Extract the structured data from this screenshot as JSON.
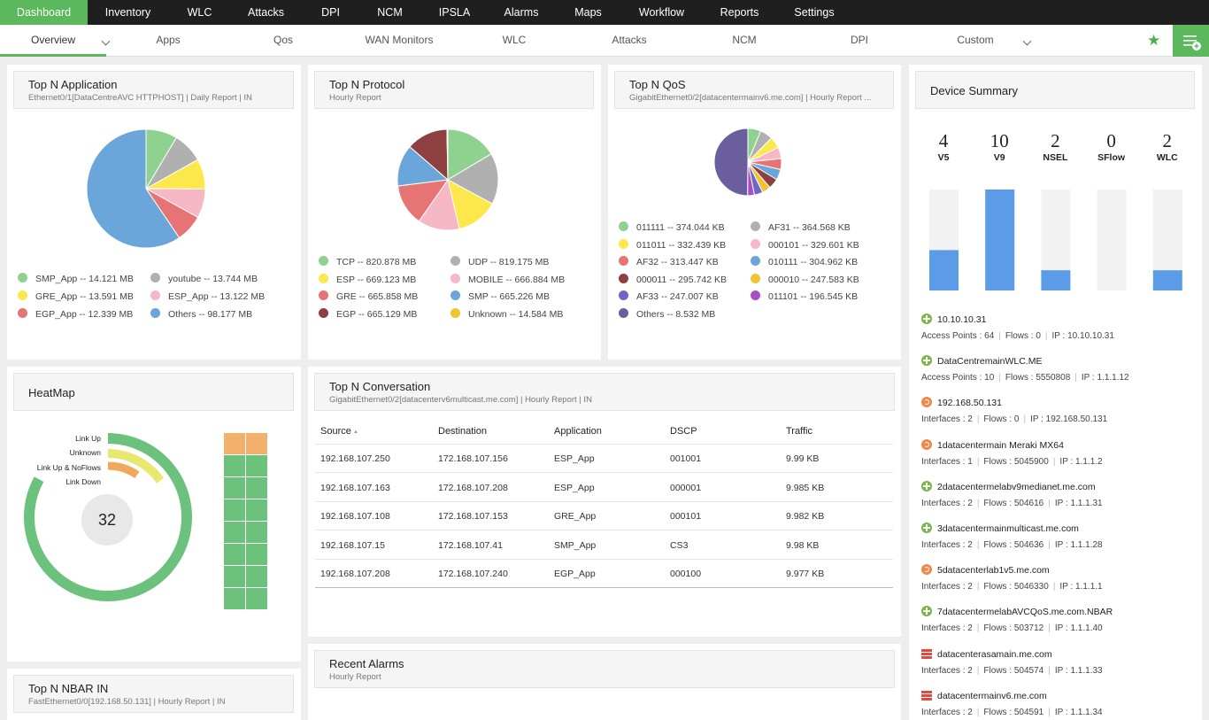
{
  "topnav": {
    "items": [
      "Dashboard",
      "Inventory",
      "WLC",
      "Attacks",
      "DPI",
      "NCM",
      "IPSLA",
      "Alarms",
      "Maps",
      "Workflow",
      "Reports",
      "Settings"
    ]
  },
  "subnav": {
    "tabs": [
      "Overview",
      "Apps",
      "Qos",
      "WAN Monitors",
      "WLC",
      "Attacks",
      "NCM",
      "DPI",
      "Custom"
    ]
  },
  "colors": {
    "accent": "#5cb85c",
    "dark": "#1f1f1f"
  },
  "top_app": {
    "title": "Top N Application",
    "subtitle": "Ethernet0/1[DataCentreAVC HTTPHOST] | Daily Report | IN",
    "chart_data": {
      "type": "pie",
      "slices": [
        {
          "label": "SMP_App -- 14.121 MB",
          "value": 14.121,
          "color": "#8fd18f"
        },
        {
          "label": "youtube -- 13.744 MB",
          "value": 13.744,
          "color": "#b0b0b0"
        },
        {
          "label": "GRE_App -- 13.591 MB",
          "value": 13.591,
          "color": "#fde84c"
        },
        {
          "label": "ESP_App -- 13.122 MB",
          "value": 13.122,
          "color": "#f7b8c6"
        },
        {
          "label": "EGP_App -- 12.339 MB",
          "value": 12.339,
          "color": "#e77474"
        },
        {
          "label": "Others -- 98.177 MB",
          "value": 98.177,
          "color": "#6aa6d9"
        }
      ]
    }
  },
  "top_protocol": {
    "title": "Top N Protocol",
    "subtitle": "Hourly Report",
    "chart_data": {
      "type": "pie",
      "slices": [
        {
          "label": "TCP -- 820.878 MB",
          "value": 820.878,
          "color": "#8fd18f"
        },
        {
          "label": "UDP -- 819.175 MB",
          "value": 819.175,
          "color": "#b0b0b0"
        },
        {
          "label": "ESP -- 669.123 MB",
          "value": 669.123,
          "color": "#fde84c"
        },
        {
          "label": "MOBILE -- 666.884 MB",
          "value": 666.884,
          "color": "#f7b8c6"
        },
        {
          "label": "GRE -- 665.858 MB",
          "value": 665.858,
          "color": "#e77474"
        },
        {
          "label": "SMP -- 665.226 MB",
          "value": 665.226,
          "color": "#6aa6d9"
        },
        {
          "label": "EGP -- 665.129 MB",
          "value": 665.129,
          "color": "#8e3f3f"
        },
        {
          "label": "Unknown -- 14.584 MB",
          "value": 14.584,
          "color": "#f2c232"
        }
      ]
    }
  },
  "top_qos": {
    "title": "Top N QoS",
    "subtitle": "GigabitEthernet0/2[datacentermainv6.me.com] | Hourly Report ...",
    "chart_data": {
      "type": "pie",
      "slices": [
        {
          "label": "011111 -- 374.044 KB",
          "value": 374.044,
          "color": "#8fd18f"
        },
        {
          "label": "AF31 -- 364.568 KB",
          "value": 364.568,
          "color": "#b0b0b0"
        },
        {
          "label": "011011 -- 332.439 KB",
          "value": 332.439,
          "color": "#fde84c"
        },
        {
          "label": "000101 -- 329.601 KB",
          "value": 329.601,
          "color": "#f7b8c6"
        },
        {
          "label": "AF32 -- 313.447 KB",
          "value": 313.447,
          "color": "#e77474"
        },
        {
          "label": "010111 -- 304.962 KB",
          "value": 304.962,
          "color": "#6aa6d9"
        },
        {
          "label": "000011 -- 295.742 KB",
          "value": 295.742,
          "color": "#8e3f3f"
        },
        {
          "label": "000010 -- 247.583 KB",
          "value": 247.583,
          "color": "#f2c232"
        },
        {
          "label": "AF33 -- 247.007 KB",
          "value": 247.007,
          "color": "#6f67c8"
        },
        {
          "label": "011101 -- 196.545 KB",
          "value": 196.545,
          "color": "#a94fc5"
        },
        {
          "label": "Others -- 8.532 MB",
          "value": 8532,
          "color": "#6b5e9e"
        }
      ]
    }
  },
  "device_summary": {
    "title": "Device Summary",
    "counts": [
      {
        "value": "4",
        "label": "V5",
        "fill": 0.4,
        "color": "#5b9be8"
      },
      {
        "value": "10",
        "label": "V9",
        "fill": 1.0,
        "color": "#5b9be8"
      },
      {
        "value": "2",
        "label": "NSEL",
        "fill": 0.2,
        "color": "#5b9be8"
      },
      {
        "value": "0",
        "label": "SFlow",
        "fill": 0.0,
        "color": "#5b9be8"
      },
      {
        "value": "2",
        "label": "WLC",
        "fill": 0.2,
        "color": "#5b9be8"
      }
    ],
    "devices": [
      {
        "icon": "wlc-icon",
        "name": "10.10.10.31",
        "a": "Access Points : 64",
        "b": "Flows : 0",
        "c": "IP : 10.10.10.31"
      },
      {
        "icon": "wlc-icon",
        "name": "DataCentremainWLC.ME",
        "a": "Access Points : 10",
        "b": "Flows : 5550808",
        "c": "IP : 1.1.1.12"
      },
      {
        "icon": "router-icon",
        "name": "192.168.50.131",
        "a": "Interfaces : 2",
        "b": "Flows : 0",
        "c": "IP : 192.168.50.131"
      },
      {
        "icon": "router-icon",
        "name": "1datacentermain Meraki MX64",
        "a": "Interfaces : 1",
        "b": "Flows : 5045900",
        "c": "IP : 1.1.1.2"
      },
      {
        "icon": "wlc-icon",
        "name": "2datacentermelabv9medianet.me.com",
        "a": "Interfaces : 2",
        "b": "Flows : 504616",
        "c": "IP : 1.1.1.31"
      },
      {
        "icon": "wlc-icon",
        "name": "3datacentermainmulticast.me.com",
        "a": "Interfaces : 2",
        "b": "Flows : 504636",
        "c": "IP : 1.1.1.28"
      },
      {
        "icon": "router-icon",
        "name": "5datacenterlab1v5.me.com",
        "a": "Interfaces : 2",
        "b": "Flows : 5046330",
        "c": "IP : 1.1.1.1"
      },
      {
        "icon": "wlc-icon",
        "name": "7datacentermelabAVCQoS.me.com.NBAR",
        "a": "Interfaces : 2",
        "b": "Flows : 503712",
        "c": "IP : 1.1.1.40"
      },
      {
        "icon": "firewall-icon",
        "name": "datacenterasamain.me.com",
        "a": "Interfaces : 2",
        "b": "Flows : 504574",
        "c": "IP : 1.1.1.33"
      },
      {
        "icon": "firewall-icon",
        "name": "datacentermainv6.me.com",
        "a": "Interfaces : 2",
        "b": "Flows : 504591",
        "c": "IP : 1.1.1.34"
      }
    ]
  },
  "heatmap": {
    "title": "HeatMap",
    "total": "32",
    "legend": [
      "Link Up",
      "Unknown",
      "Link Up & NoFlows",
      "Link Down"
    ],
    "chart_data": {
      "type": "pie",
      "rings": [
        {
          "label": "Link Up",
          "value": 0.86,
          "color": "#6cc27c"
        },
        {
          "label": "Unknown",
          "value": 0.09,
          "color": "#e9e86e"
        },
        {
          "label": "Link Up & NoFlows",
          "value": 0.06,
          "color": "#f2a85c"
        },
        {
          "label": "Link Down",
          "value": 0.0,
          "color": "#e77474"
        }
      ]
    },
    "cells": [
      "#f2b06a",
      "#f2b06a",
      "#6cc27c",
      "#6cc27c",
      "#6cc27c",
      "#6cc27c",
      "#6cc27c",
      "#6cc27c",
      "#6cc27c",
      "#6cc27c",
      "#6cc27c",
      "#6cc27c",
      "#6cc27c",
      "#6cc27c",
      "#6cc27c",
      "#6cc27c"
    ]
  },
  "conversation": {
    "title": "Top N Conversation",
    "subtitle": "GigabitEthernet0/2[datacenterv6multicast.me.com] | Hourly Report | IN",
    "columns": [
      "Source",
      "Destination",
      "Application",
      "DSCP",
      "Traffic"
    ],
    "rows": [
      [
        "192.168.107.250",
        "172.168.107.156",
        "ESP_App",
        "001001",
        "9.99 KB"
      ],
      [
        "192.168.107.163",
        "172.168.107.208",
        "ESP_App",
        "000001",
        "9.985 KB"
      ],
      [
        "192.168.107.108",
        "172.168.107.153",
        "GRE_App",
        "000101",
        "9.982 KB"
      ],
      [
        "192.168.107.15",
        "172.168.107.41",
        "SMP_App",
        "CS3",
        "9.98 KB"
      ],
      [
        "192.168.107.208",
        "172.168.107.240",
        "EGP_App",
        "000100",
        "9.977 KB"
      ]
    ]
  },
  "alarms": {
    "title": "Recent Alarms",
    "subtitle": "Hourly Report"
  },
  "nbar": {
    "title": "Top N NBAR IN",
    "subtitle": "FastEthernet0/0[192.168.50.131] | Hourly Report | IN"
  }
}
